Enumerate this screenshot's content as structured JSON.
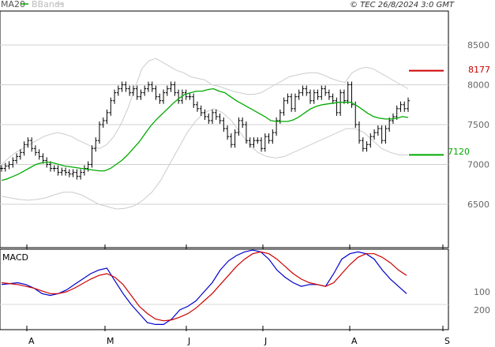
{
  "header": {
    "legend_ma20": "MA20",
    "legend_bbands": "BBands",
    "source": "© TEC 26/8/2024 3:0 GMT",
    "ma20_color": "#00aa00",
    "bbands_color": "#cccccc"
  },
  "chart_data": [
    {
      "type": "candlestick",
      "panel": "price",
      "y_ticks": [
        6500,
        7000,
        7500,
        8000,
        8500
      ],
      "y_tick_labels": [
        "6500",
        "7000",
        "7500",
        "8000",
        "8500"
      ],
      "ylim": [
        6000,
        9000
      ],
      "x_month_labels": [
        "A",
        "M",
        "J",
        "J",
        "A",
        "S"
      ],
      "grid": true,
      "tags": [
        {
          "name": "resistance",
          "label": "8177",
          "value": 8177,
          "color": "#cc0000"
        },
        {
          "name": "support",
          "label": "7120",
          "value": 7120,
          "color": "#00aa00"
        }
      ],
      "close_approx": [
        6950,
        6980,
        7000,
        7050,
        7100,
        7150,
        7250,
        7300,
        7200,
        7150,
        7100,
        7050,
        7000,
        6950,
        6950,
        6900,
        6920,
        6900,
        6880,
        6900,
        6850,
        6900,
        6950,
        7000,
        7200,
        7300,
        7500,
        7550,
        7650,
        7800,
        7900,
        7950,
        8000,
        7950,
        7900,
        7950,
        7850,
        7900,
        7950,
        8000,
        7950,
        7850,
        7800,
        7900,
        7950,
        8000,
        7900,
        7800,
        7900,
        7850,
        7850,
        7750,
        7700,
        7650,
        7600,
        7550,
        7650,
        7600,
        7550,
        7450,
        7350,
        7250,
        7400,
        7550,
        7500,
        7300,
        7250,
        7300,
        7300,
        7200,
        7350,
        7300,
        7400,
        7550,
        7650,
        7800,
        7850,
        7700,
        7850,
        7900,
        7950,
        7900,
        7800,
        7900,
        7850,
        7950,
        7900,
        7850,
        7800,
        7650,
        7900,
        7800,
        8000,
        7750,
        7500,
        7300,
        7200,
        7250,
        7350,
        7400,
        7450,
        7300,
        7450,
        7550,
        7600,
        7700,
        7750,
        7700,
        7800
      ],
      "ma20_approx": [
        6800,
        6820,
        6850,
        6880,
        6920,
        6960,
        7000,
        7020,
        7030,
        7020,
        7000,
        6980,
        6970,
        6960,
        6950,
        6940,
        6930,
        6920,
        6920,
        6950,
        7000,
        7050,
        7120,
        7200,
        7280,
        7380,
        7480,
        7560,
        7630,
        7700,
        7770,
        7830,
        7880,
        7900,
        7920,
        7920,
        7940,
        7950,
        7920,
        7900,
        7850,
        7800,
        7760,
        7720,
        7680,
        7640,
        7600,
        7550,
        7540,
        7540,
        7540,
        7560,
        7600,
        7650,
        7700,
        7730,
        7750,
        7760,
        7770,
        7780,
        7780,
        7780,
        7740,
        7690,
        7640,
        7600,
        7580,
        7570,
        7570,
        7580,
        7600,
        7590
      ],
      "bb_upper_approx": [
        7000,
        7080,
        7150,
        7200,
        7250,
        7300,
        7350,
        7380,
        7400,
        7380,
        7350,
        7300,
        7260,
        7220,
        7200,
        7250,
        7350,
        7500,
        7700,
        7950,
        8200,
        8300,
        8330,
        8280,
        8230,
        8180,
        8150,
        8100,
        8080,
        8060,
        8000,
        7980,
        7950,
        7920,
        7900,
        7880,
        7880,
        7900,
        7950,
        8000,
        8050,
        8100,
        8120,
        8140,
        8150,
        8150,
        8120,
        8080,
        8050,
        8030,
        8150,
        8200,
        8220,
        8200,
        8150,
        8100,
        8050,
        8000,
        7950
      ],
      "bb_lower_approx": [
        6600,
        6580,
        6560,
        6550,
        6560,
        6580,
        6620,
        6650,
        6650,
        6620,
        6560,
        6500,
        6470,
        6440,
        6450,
        6480,
        6550,
        6650,
        6800,
        7000,
        7200,
        7400,
        7550,
        7650,
        7700,
        7650,
        7550,
        7400,
        7250,
        7150,
        7100,
        7080,
        7100,
        7150,
        7200,
        7250,
        7300,
        7350,
        7400,
        7450,
        7450,
        7400,
        7300,
        7200,
        7150,
        7120,
        7120
      ]
    },
    {
      "type": "line",
      "panel": "macd",
      "title": "MACD",
      "y_ticks": [
        100,
        200
      ],
      "y_tick_labels": [
        "100",
        "200"
      ],
      "ylim": [
        -200,
        300
      ],
      "x_month_labels": [
        "A",
        "M",
        "J",
        "J",
        "A",
        "S"
      ],
      "grid": true,
      "series": [
        {
          "color": "#0000cc",
          "values": [
            60,
            55,
            50,
            60,
            80,
            110,
            120,
            110,
            90,
            60,
            30,
            0,
            -20,
            -30,
            40,
            110,
            170,
            220,
            270,
            280,
            280,
            250,
            200,
            180,
            150,
            100,
            50,
            -20,
            -70,
            -100,
            -120,
            -130,
            -120,
            -80,
            -20,
            20,
            50,
            70,
            60,
            60,
            70,
            0,
            -80,
            -110,
            -120,
            -110,
            -80,
            -20,
            30,
            70,
            110
          ]
        },
        {
          "color": "#cc0000",
          "values": [
            50,
            55,
            60,
            70,
            80,
            95,
            110,
            110,
            100,
            80,
            55,
            30,
            10,
            0,
            20,
            60,
            120,
            180,
            220,
            250,
            260,
            255,
            240,
            220,
            190,
            150,
            110,
            60,
            10,
            -40,
            -80,
            -110,
            -120,
            -110,
            -80,
            -40,
            0,
            30,
            50,
            60,
            70,
            50,
            0,
            -50,
            -90,
            -110,
            -110,
            -90,
            -60,
            -20,
            10
          ]
        }
      ]
    }
  ]
}
